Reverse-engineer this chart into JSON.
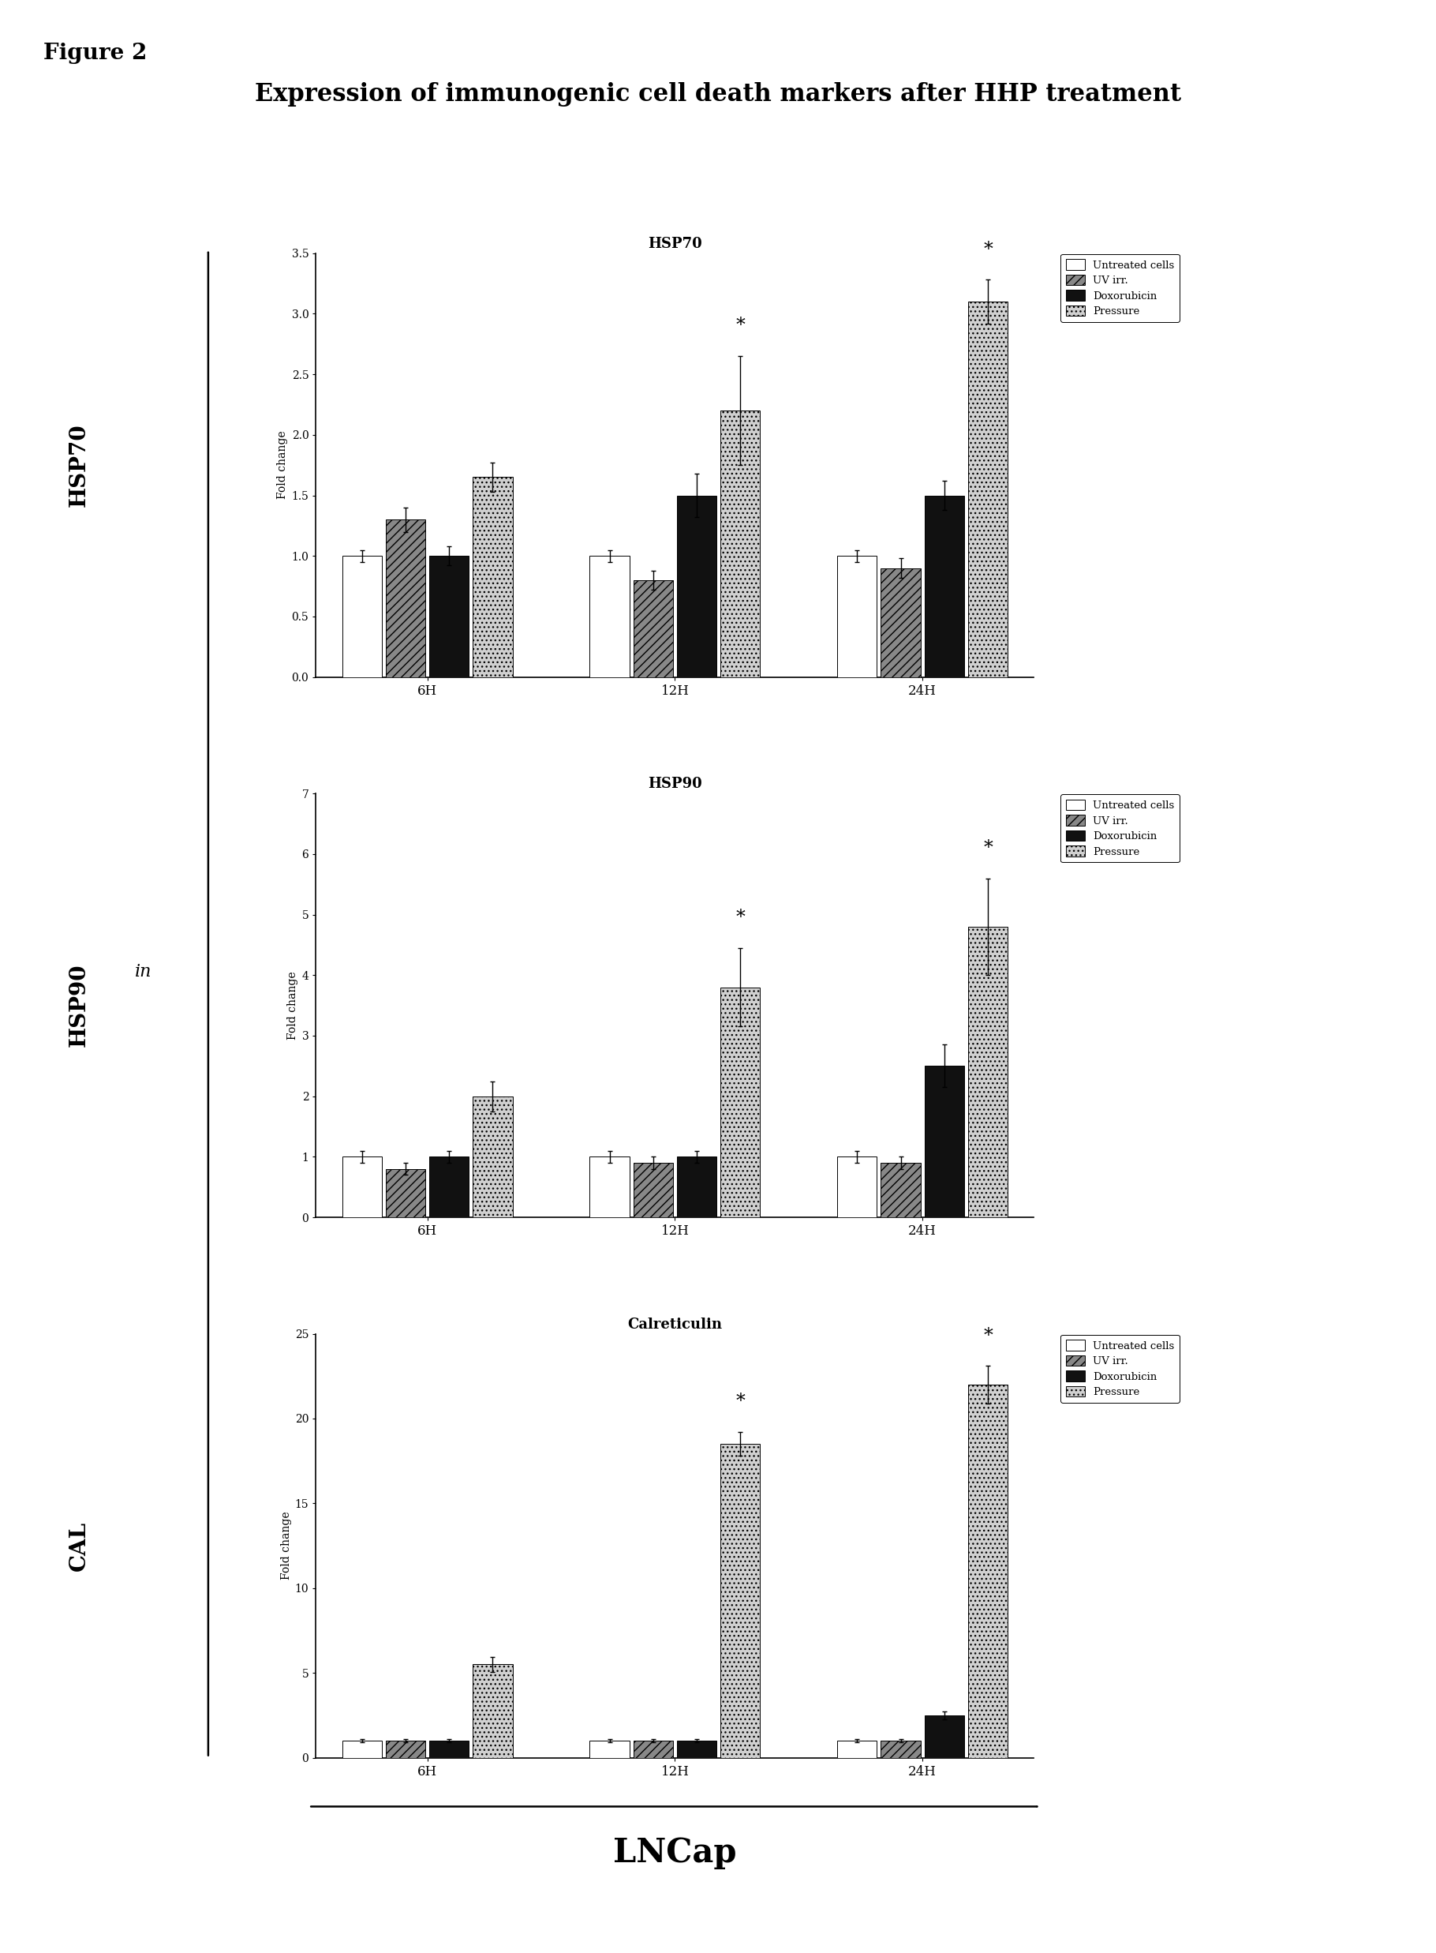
{
  "title": "Expression of immunogenic cell death markers after HHP treatment",
  "figure_label": "Figure 2",
  "subplot_titles": [
    "HSP70",
    "HSP90",
    "Calreticulin"
  ],
  "ylabel_labels": [
    "HSP70",
    "HSP90",
    "CAL"
  ],
  "fold_change_label": "Fold change",
  "groups": [
    "6H",
    "12H",
    "24H"
  ],
  "bar_colors": [
    "white",
    "#888888",
    "#111111",
    "#d0d0d0"
  ],
  "bar_hatch": [
    null,
    "///",
    null,
    "..."
  ],
  "legend_labels": [
    "Untreated cells",
    "UV irr.",
    "Doxorubicin",
    "Pressure"
  ],
  "x_label_bottom": "LNCap",
  "in_label": "in",
  "hsp70": {
    "ylim": [
      0.0,
      3.5
    ],
    "yticks": [
      0.0,
      0.5,
      1.0,
      1.5,
      2.0,
      2.5,
      3.0,
      3.5
    ],
    "yticklabels": [
      "0.0",
      "0.5",
      "1.0",
      "1.5",
      "2.0",
      "2.5",
      "3.0",
      "3.5"
    ],
    "values": [
      [
        1.0,
        1.3,
        1.0,
        1.65
      ],
      [
        1.0,
        0.8,
        1.5,
        2.2
      ],
      [
        1.0,
        0.9,
        1.5,
        3.1
      ]
    ],
    "errors": [
      [
        0.05,
        0.1,
        0.08,
        0.12
      ],
      [
        0.05,
        0.08,
        0.18,
        0.45
      ],
      [
        0.05,
        0.08,
        0.12,
        0.18
      ]
    ]
  },
  "hsp90": {
    "ylim": [
      0,
      7
    ],
    "yticks": [
      0,
      1,
      2,
      3,
      4,
      5,
      6,
      7
    ],
    "yticklabels": [
      "0",
      "1",
      "2",
      "3",
      "4",
      "5",
      "6",
      "7"
    ],
    "values": [
      [
        1.0,
        0.8,
        1.0,
        2.0
      ],
      [
        1.0,
        0.9,
        1.0,
        3.8
      ],
      [
        1.0,
        0.9,
        2.5,
        4.8
      ]
    ],
    "errors": [
      [
        0.1,
        0.1,
        0.1,
        0.25
      ],
      [
        0.1,
        0.1,
        0.1,
        0.65
      ],
      [
        0.1,
        0.1,
        0.35,
        0.8
      ]
    ]
  },
  "calreticulin": {
    "ylim": [
      0,
      25
    ],
    "yticks": [
      0,
      5,
      10,
      15,
      20,
      25
    ],
    "yticklabels": [
      "0",
      "5",
      "10",
      "15",
      "20",
      "25"
    ],
    "values": [
      [
        1.0,
        1.0,
        1.0,
        5.5
      ],
      [
        1.0,
        1.0,
        1.0,
        18.5
      ],
      [
        1.0,
        1.0,
        2.5,
        22.0
      ]
    ],
    "errors": [
      [
        0.1,
        0.1,
        0.1,
        0.45
      ],
      [
        0.1,
        0.1,
        0.1,
        0.7
      ],
      [
        0.1,
        0.1,
        0.25,
        1.1
      ]
    ]
  }
}
